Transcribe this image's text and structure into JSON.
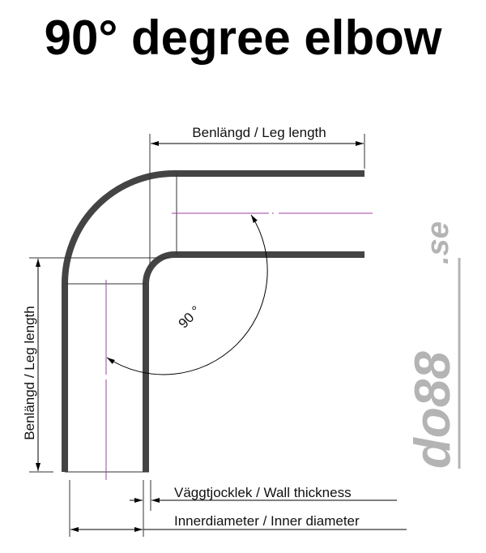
{
  "title": "90° degree elbow",
  "labels": {
    "leg_length_top": "Benlängd / Leg length",
    "leg_length_side": "Benlängd / Leg length",
    "angle": "90 °",
    "wall_thickness": "Väggtjocklek / Wall thickness",
    "inner_diameter": "Innerdiameter / Inner diameter"
  },
  "logo": {
    "text_main": "do88",
    "text_suffix": ".se"
  },
  "colors": {
    "tube": "#444444",
    "centerline": "#a040a0",
    "logo": "#b4b4b4"
  }
}
